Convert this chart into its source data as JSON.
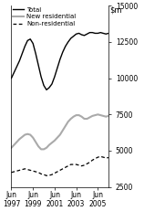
{
  "ylim": [
    2500,
    15000
  ],
  "yticks": [
    2500,
    5000,
    7500,
    10000,
    12500,
    15000
  ],
  "ytick_labels": [
    "2500",
    "5000",
    "7500",
    "10000",
    "12500",
    "15000"
  ],
  "xlim": [
    0,
    108
  ],
  "xtick_positions": [
    0,
    24,
    48,
    72,
    96
  ],
  "xtick_labels": [
    "Jun\n1997",
    "Jun\n1999",
    "Jun\n2001",
    "Jun\n2003",
    "Jun\n2005"
  ],
  "legend": [
    {
      "label": "Total",
      "color": "#000000",
      "lw": 1.0,
      "ls": "solid"
    },
    {
      "label": "New residential",
      "color": "#aaaaaa",
      "lw": 1.5,
      "ls": "solid"
    },
    {
      "label": "Non-residential",
      "color": "#000000",
      "lw": 0.9,
      "ls": "dashed"
    }
  ],
  "x": [
    0,
    3,
    6,
    9,
    12,
    15,
    18,
    21,
    24,
    27,
    30,
    33,
    36,
    39,
    42,
    45,
    48,
    51,
    54,
    57,
    60,
    63,
    66,
    69,
    72,
    75,
    78,
    81,
    84,
    87,
    90,
    93,
    96,
    99,
    102,
    105,
    108
  ],
  "total": [
    10000,
    10400,
    10800,
    11200,
    11700,
    12200,
    12600,
    12700,
    12400,
    11700,
    10900,
    10100,
    9500,
    9200,
    9350,
    9600,
    10100,
    10700,
    11300,
    11800,
    12200,
    12500,
    12750,
    12900,
    13050,
    13100,
    13000,
    12950,
    13050,
    13150,
    13150,
    13100,
    13100,
    13150,
    13100,
    13050,
    13100
  ],
  "new_res": [
    5200,
    5400,
    5600,
    5800,
    5950,
    6100,
    6150,
    6100,
    5900,
    5600,
    5300,
    5100,
    5100,
    5200,
    5400,
    5550,
    5700,
    5900,
    6100,
    6400,
    6700,
    7000,
    7200,
    7350,
    7450,
    7450,
    7350,
    7200,
    7200,
    7300,
    7400,
    7450,
    7500,
    7450,
    7400,
    7350,
    7400
  ],
  "non_res": [
    3500,
    3550,
    3600,
    3650,
    3700,
    3750,
    3700,
    3650,
    3600,
    3550,
    3500,
    3400,
    3350,
    3280,
    3300,
    3350,
    3450,
    3550,
    3650,
    3750,
    3850,
    3950,
    4050,
    4050,
    4050,
    4000,
    3950,
    4000,
    4100,
    4200,
    4350,
    4450,
    4550,
    4600,
    4550,
    4500,
    4520
  ]
}
